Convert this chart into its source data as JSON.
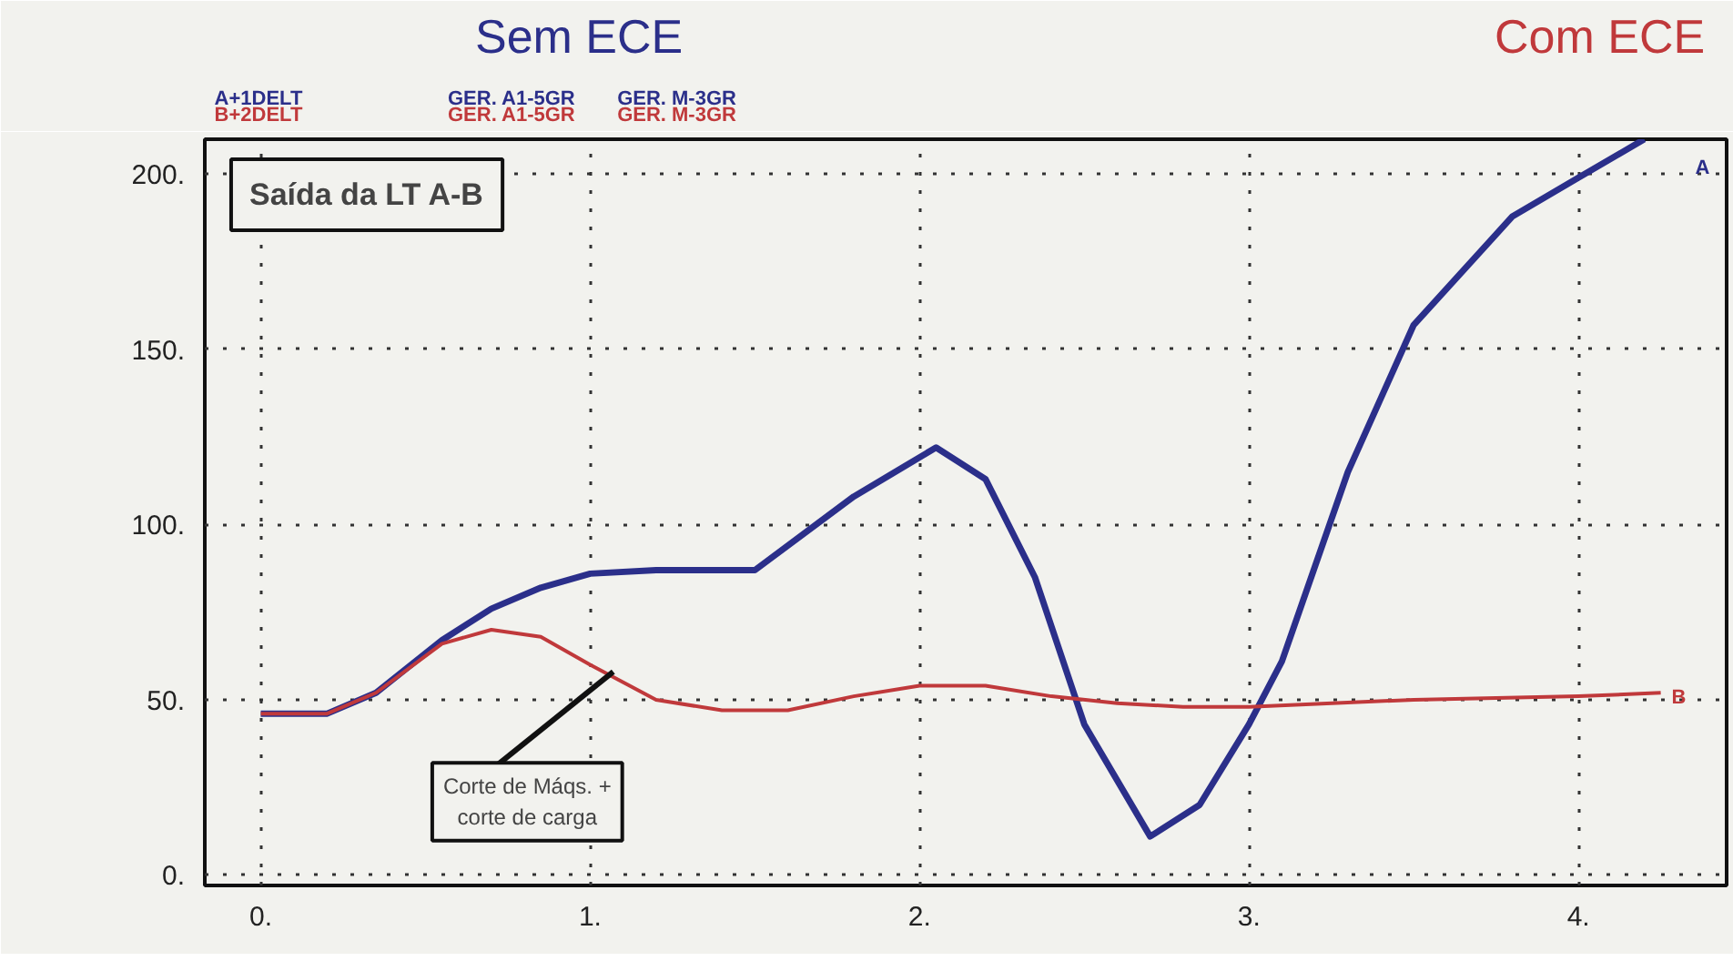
{
  "chart_data": {
    "type": "line",
    "title": "Saída da LT A-B",
    "series": [
      {
        "name": "Sem ECE",
        "color": "#2b2f8a",
        "x": [
          0,
          0.2,
          0.35,
          0.55,
          0.7,
          0.85,
          1.0,
          1.2,
          1.5,
          1.8,
          2.05,
          2.2,
          2.35,
          2.5,
          2.7,
          2.85,
          3.0,
          3.1,
          3.3,
          3.5,
          3.8,
          4.0,
          4.2
        ],
        "values": [
          46,
          46,
          52,
          67,
          76,
          82,
          86,
          87,
          87,
          108,
          122,
          113,
          85,
          43,
          11,
          20,
          43,
          61,
          115,
          157,
          188,
          199,
          210
        ]
      },
      {
        "name": "Com ECE",
        "color": "#c0393b",
        "x": [
          0,
          0.2,
          0.35,
          0.55,
          0.7,
          0.85,
          1.0,
          1.2,
          1.4,
          1.6,
          1.8,
          2.0,
          2.2,
          2.4,
          2.6,
          2.8,
          3.0,
          3.5,
          4.0,
          4.25
        ],
        "values": [
          46,
          46,
          52,
          66,
          70,
          68,
          60,
          50,
          47,
          47,
          51,
          54,
          54,
          51,
          49,
          48,
          48,
          50,
          51,
          52
        ]
      }
    ],
    "xlim": [
      -0.17,
      4.45
    ],
    "ylim": [
      -3,
      210
    ],
    "xticks": [
      {
        "value": 0,
        "label": "0."
      },
      {
        "value": 1,
        "label": "1."
      },
      {
        "value": 2,
        "label": "2."
      },
      {
        "value": 3,
        "label": "3."
      },
      {
        "value": 4,
        "label": "4."
      }
    ],
    "yticks": [
      {
        "value": 0,
        "label": "0."
      },
      {
        "value": 50,
        "label": "50."
      },
      {
        "value": 100,
        "label": "100."
      },
      {
        "value": 150,
        "label": "150."
      },
      {
        "value": 200,
        "label": "200."
      }
    ],
    "grid": true,
    "legend": "top",
    "marker": "none",
    "line_style": "solid",
    "annotations": [
      "A+1DELT",
      "B+2DELT",
      "GER. A1-5GR",
      "GER. A1-5GR",
      "GER. M-3GR",
      "GER. M-3GR",
      {
        "text": "Corte de Máqs. +\ncorte de carga",
        "x": 1.07,
        "y": 58
      },
      "A",
      "B"
    ]
  }
}
